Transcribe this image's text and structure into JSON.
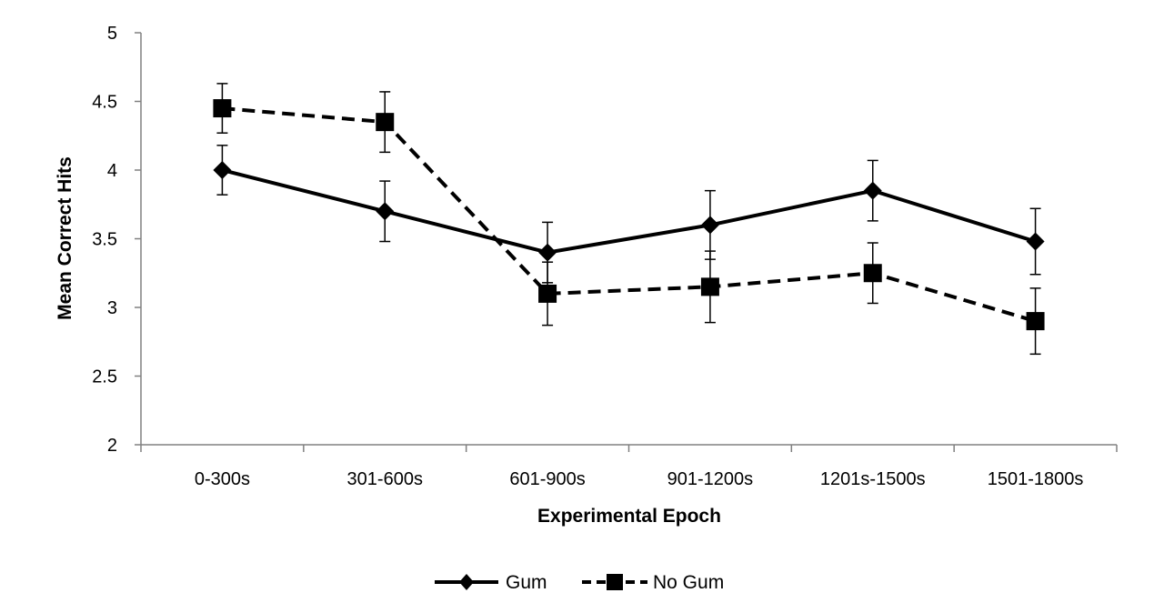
{
  "chart_data": {
    "type": "line",
    "title": "",
    "xlabel": "Experimental Epoch",
    "ylabel": "Mean Correct Hits",
    "ylim": [
      2,
      5
    ],
    "yticks": [
      "2",
      "2.5",
      "3",
      "3.5",
      "4",
      "4.5",
      "5"
    ],
    "categories": [
      "0-300s",
      "301-600s",
      "601-900s",
      "901-1200s",
      "1201s-1500s",
      "1501-1800s"
    ],
    "grid": false,
    "legend_position": "bottom",
    "series": [
      {
        "name": "Gum",
        "marker": "diamond",
        "line_style": "solid",
        "color": "#000000",
        "values": [
          4.0,
          3.7,
          3.4,
          3.6,
          3.85,
          3.48
        ],
        "error": [
          0.18,
          0.22,
          0.22,
          0.25,
          0.22,
          0.24
        ]
      },
      {
        "name": "No Gum",
        "marker": "square",
        "line_style": "dashed",
        "color": "#000000",
        "values": [
          4.45,
          4.35,
          3.1,
          3.15,
          3.25,
          2.9
        ],
        "error": [
          0.18,
          0.22,
          0.23,
          0.26,
          0.22,
          0.24
        ]
      }
    ]
  }
}
